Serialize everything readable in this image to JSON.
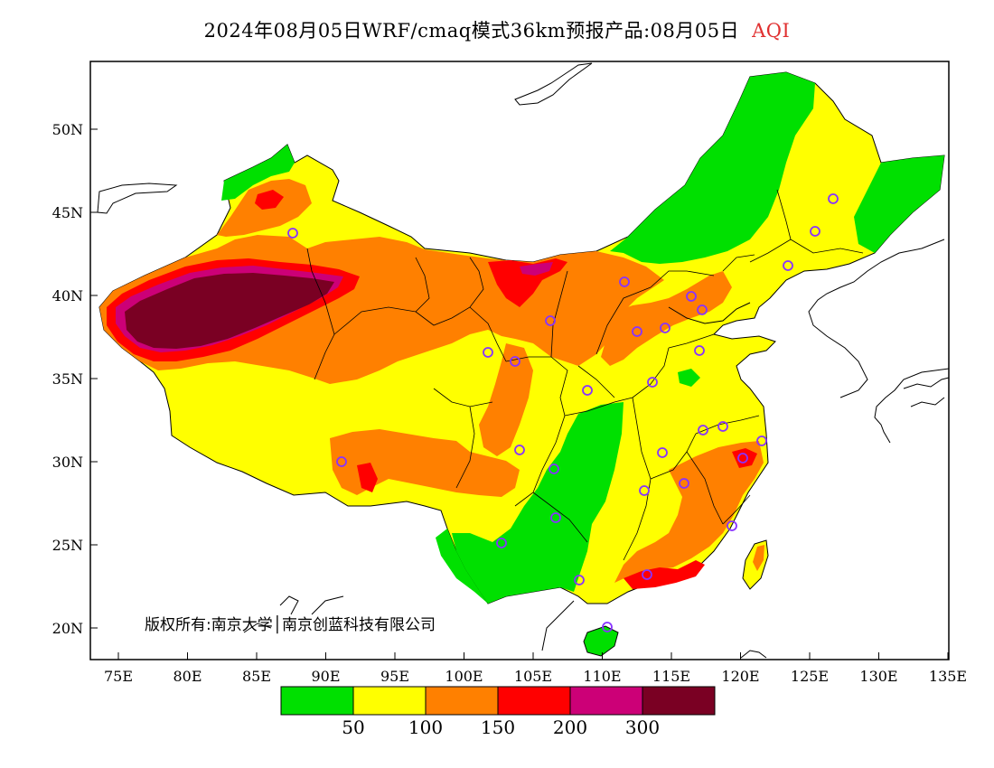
{
  "title": {
    "main": "2024年08月05日WRF/cmaq模式36km预报产品:08月05日",
    "variable": "AQI"
  },
  "map": {
    "copyright": "版权所有:南京大学│南京创蓝科技有限公司",
    "lat_labels": [
      "50N",
      "45N",
      "40N",
      "35N",
      "30N",
      "25N",
      "20N"
    ],
    "lon_labels": [
      "75E",
      "80E",
      "85E",
      "90E",
      "95E",
      "100E",
      "105E",
      "110E",
      "115E",
      "120E",
      "125E",
      "130E",
      "135E"
    ]
  },
  "legend": {
    "thresholds": [
      "50",
      "100",
      "150",
      "200",
      "300"
    ],
    "colors": [
      "#00e000",
      "#ffff00",
      "#ff8000",
      "#ff0000",
      "#cc0077",
      "#7a0023"
    ]
  },
  "colors": {
    "good": "#00e000",
    "moderate": "#ffff00",
    "usg": "#ff8000",
    "unhealthy": "#ff0000",
    "very_unhealthy": "#cc0077",
    "hazardous": "#7a0023",
    "city_marker": "#8833ff"
  }
}
